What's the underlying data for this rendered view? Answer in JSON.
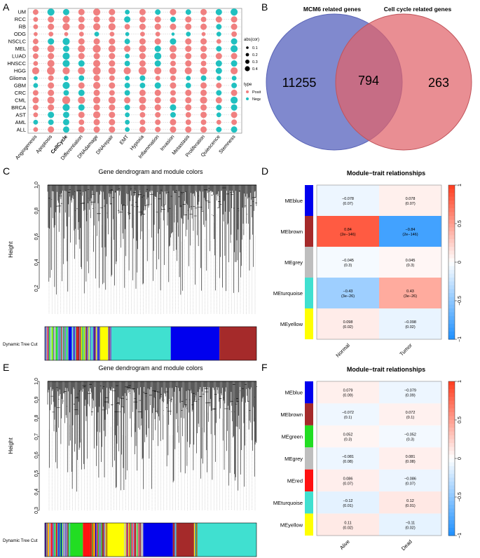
{
  "panel_labels": {
    "A": "A",
    "B": "B",
    "C": "C",
    "D": "D",
    "E": "E",
    "F": "F"
  },
  "colors": {
    "positive": "#f08080",
    "negative": "#20c0c0",
    "venn_left": "#6a74c6",
    "venn_right": "#e0636a",
    "blue": "#0000ee",
    "brown": "#a52a2a",
    "grey": "#bebebe",
    "turquoise": "#40e0d0",
    "yellow": "#ffff00",
    "green": "#22dd22",
    "red": "#ff1111"
  },
  "panelA": {
    "chart_data": {
      "type": "scatter",
      "rows": [
        "UM",
        "RCC",
        "RB",
        "ODG",
        "NSCLC",
        "MEL",
        "LUAD",
        "HNSCC",
        "HGG",
        "Glioma",
        "GBM",
        "CRC",
        "CML",
        "BRCA",
        "AST",
        "AML",
        "ALL"
      ],
      "columns": [
        "Angiogenesis",
        "Apoptosis",
        "CellCycle",
        "Differentiation",
        "DNAdamage",
        "DNArepair",
        "EMT",
        "Hypoxia",
        "Inflammation",
        "Invasion",
        "Metastasis",
        "Proliferation",
        "Quiescence",
        "Stemness"
      ],
      "highlight_column": "CellCycle",
      "size_legend": {
        "title": "abs(cor)",
        "labels": [
          "0.1",
          "0.2",
          "0.3",
          "0.4"
        ],
        "values": [
          0.1,
          0.2,
          0.3,
          0.4
        ]
      },
      "type_legend": {
        "title": "type",
        "labels": [
          "Positive",
          "Negative"
        ]
      },
      "signs": [
        "PNNPPPNPNPNPNN",
        "PPPPPPNPPNPPPP",
        "PPPPPPPPPPPPNP",
        "PPPPNPNPPNNPNP",
        "PNNPPPNPPNPPPN",
        "PPNPPPPPNPPPNN",
        "PPNPPPNPNPPPPP",
        "PPNNPPNPNPPPNN",
        "PPPPPPPPPPPPNP",
        "NPNNPPNNPPNNNN",
        "NPNPPPNNNPNPPN",
        "PPNNPPNPPPPPNP",
        "PPPPPPPPPPPPPN",
        "PPNNPPNPPNPPNN",
        "PNNPPPNPPNPPNP",
        "NNNPPPNPPPPPPP",
        "PPNPPPNPPPPPNN"
      ],
      "magnitudes": [
        [
          0.25,
          0.35,
          0.3,
          0.3,
          0.35,
          0.3,
          0.2,
          0.3,
          0.25,
          0.3,
          0.25,
          0.3,
          0.3,
          0.35
        ],
        [
          0.2,
          0.3,
          0.35,
          0.3,
          0.3,
          0.3,
          0.3,
          0.3,
          0.3,
          0.25,
          0.3,
          0.25,
          0.3,
          0.3
        ],
        [
          0.2,
          0.3,
          0.35,
          0.3,
          0.35,
          0.35,
          0.25,
          0.3,
          0.3,
          0.3,
          0.3,
          0.3,
          0.25,
          0.3
        ],
        [
          0.15,
          0.2,
          0.15,
          0.2,
          0.2,
          0.2,
          0.15,
          0.2,
          0.2,
          0.1,
          0.2,
          0.15,
          0.2,
          0.25
        ],
        [
          0.25,
          0.3,
          0.35,
          0.3,
          0.3,
          0.3,
          0.25,
          0.3,
          0.3,
          0.3,
          0.3,
          0.3,
          0.2,
          0.3
        ],
        [
          0.3,
          0.35,
          0.3,
          0.35,
          0.4,
          0.35,
          0.3,
          0.35,
          0.3,
          0.35,
          0.3,
          0.3,
          0.25,
          0.35
        ],
        [
          0.25,
          0.3,
          0.35,
          0.3,
          0.3,
          0.3,
          0.2,
          0.3,
          0.35,
          0.3,
          0.3,
          0.3,
          0.3,
          0.3
        ],
        [
          0.2,
          0.35,
          0.35,
          0.3,
          0.35,
          0.3,
          0.25,
          0.3,
          0.3,
          0.25,
          0.3,
          0.25,
          0.3,
          0.3
        ],
        [
          0.35,
          0.4,
          0.35,
          0.35,
          0.4,
          0.35,
          0.35,
          0.4,
          0.35,
          0.35,
          0.35,
          0.35,
          0.3,
          0.35
        ],
        [
          0.15,
          0.25,
          0.2,
          0.25,
          0.3,
          0.25,
          0.2,
          0.25,
          0.2,
          0.25,
          0.2,
          0.25,
          0.2,
          0.2
        ],
        [
          0.2,
          0.3,
          0.35,
          0.3,
          0.35,
          0.3,
          0.25,
          0.25,
          0.3,
          0.3,
          0.25,
          0.3,
          0.25,
          0.25
        ],
        [
          0.25,
          0.3,
          0.25,
          0.3,
          0.3,
          0.25,
          0.25,
          0.3,
          0.3,
          0.25,
          0.3,
          0.3,
          0.25,
          0.3
        ],
        [
          0.3,
          0.35,
          0.4,
          0.35,
          0.35,
          0.35,
          0.3,
          0.35,
          0.3,
          0.3,
          0.3,
          0.35,
          0.3,
          0.35
        ],
        [
          0.25,
          0.3,
          0.35,
          0.3,
          0.3,
          0.3,
          0.25,
          0.3,
          0.3,
          0.3,
          0.3,
          0.3,
          0.25,
          0.3
        ],
        [
          0.2,
          0.3,
          0.3,
          0.3,
          0.35,
          0.3,
          0.2,
          0.25,
          0.25,
          0.25,
          0.25,
          0.3,
          0.2,
          0.3
        ],
        [
          0.2,
          0.25,
          0.3,
          0.25,
          0.3,
          0.3,
          0.2,
          0.25,
          0.25,
          0.3,
          0.25,
          0.25,
          0.2,
          0.25
        ],
        [
          0.2,
          0.3,
          0.3,
          0.3,
          0.3,
          0.3,
          0.2,
          0.3,
          0.25,
          0.3,
          0.3,
          0.3,
          0.25,
          0.3
        ]
      ]
    }
  },
  "panelB": {
    "left_title": "MCM6 related genes",
    "right_title": "Cell cycle related genes",
    "left_only": "11255",
    "overlap": "794",
    "right_only": "263"
  },
  "panelC": {
    "title": "Gene dendrogram and module colors",
    "ylabel": "Height",
    "yticks": [
      "1.0",
      "0.8",
      "0.6",
      "0.4",
      "0.2"
    ],
    "ytick_values": [
      1.0,
      0.8,
      0.6,
      0.4,
      0.2
    ],
    "ylim": [
      0.0,
      1.0
    ],
    "colorbar_label": "Dynamic Tree Cut",
    "modules": [
      {
        "color": "mixed",
        "fraction": 0.26
      },
      {
        "color": "#ffff00",
        "fraction": 0.035
      },
      {
        "color": "mixed",
        "fraction": 0.02
      },
      {
        "color": "#40e0d0",
        "fraction": 0.28
      },
      {
        "color": "#0000ee",
        "fraction": 0.23
      },
      {
        "color": "#a52a2a",
        "fraction": 0.175
      }
    ]
  },
  "panelD": {
    "title": "Module−trait relationships",
    "columns": [
      "Normal",
      "Tumor"
    ],
    "rows": [
      {
        "name": "MEblue",
        "swatch": "#0000ee",
        "cells": [
          {
            "cor": "−0.078",
            "p": "(0.07)",
            "val": -0.078
          },
          {
            "cor": "0.078",
            "p": "(0.07)",
            "val": 0.078
          }
        ]
      },
      {
        "name": "MEbrown",
        "swatch": "#a52a2a",
        "cells": [
          {
            "cor": "0.84",
            "p": "(2e−146)",
            "val": 0.84
          },
          {
            "cor": "−0.84",
            "p": "(2e−146)",
            "val": -0.84
          }
        ]
      },
      {
        "name": "MEgrey",
        "swatch": "#bebebe",
        "cells": [
          {
            "cor": "−0.045",
            "p": "(0.3)",
            "val": -0.045
          },
          {
            "cor": "0.045",
            "p": "(0.3)",
            "val": 0.045
          }
        ]
      },
      {
        "name": "MEturquoise",
        "swatch": "#40e0d0",
        "cells": [
          {
            "cor": "−0.43",
            "p": "(3e−26)",
            "val": -0.43
          },
          {
            "cor": "0.43",
            "p": "(3e−26)",
            "val": 0.43
          }
        ]
      },
      {
        "name": "MEyellow",
        "swatch": "#ffff00",
        "cells": [
          {
            "cor": "0.098",
            "p": "(0.02)",
            "val": 0.098
          },
          {
            "cor": "−0.098",
            "p": "(0.02)",
            "val": -0.098
          }
        ]
      }
    ],
    "legend_ticks": [
      "1",
      "0.5",
      "0",
      "−0.5",
      "−1"
    ],
    "legend_values": [
      1,
      0.5,
      0,
      -0.5,
      -1
    ]
  },
  "panelE": {
    "title": "Gene dendrogram and module colors",
    "ylabel": "Height",
    "yticks": [
      "1.0",
      "0.9",
      "0.8",
      "0.7",
      "0.6",
      "0.5",
      "0.4",
      "0.3"
    ],
    "ytick_values": [
      1.0,
      0.9,
      0.8,
      0.7,
      0.6,
      0.5,
      0.4,
      0.3
    ],
    "ylim": [
      0.3,
      1.0
    ],
    "colorbar_label": "Dynamic Tree Cut",
    "modules": [
      {
        "color": "mixed",
        "fraction": 0.12
      },
      {
        "color": "#22dd22",
        "fraction": 0.06
      },
      {
        "color": "#ff1111",
        "fraction": 0.035
      },
      {
        "color": "mixed",
        "fraction": 0.08
      },
      {
        "color": "#ffff00",
        "fraction": 0.08
      },
      {
        "color": "mixed",
        "fraction": 0.09
      },
      {
        "color": "#0000ee",
        "fraction": 0.14
      },
      {
        "color": "mixed",
        "fraction": 0.02
      },
      {
        "color": "#a52a2a",
        "fraction": 0.08
      },
      {
        "color": "mixed",
        "fraction": 0.015
      },
      {
        "color": "#40e0d0",
        "fraction": 0.28
      }
    ]
  },
  "panelF": {
    "title": "Module−trait relationships",
    "columns": [
      "Alive",
      "Dead"
    ],
    "rows": [
      {
        "name": "MEblue",
        "swatch": "#0000ee",
        "cells": [
          {
            "cor": "0.079",
            "p": "(0.09)",
            "val": 0.079
          },
          {
            "cor": "−0.079",
            "p": "(0.09)",
            "val": -0.079
          }
        ]
      },
      {
        "name": "MEbrown",
        "swatch": "#a52a2a",
        "cells": [
          {
            "cor": "−0.072",
            "p": "(0.1)",
            "val": -0.072
          },
          {
            "cor": "0.072",
            "p": "(0.1)",
            "val": 0.072
          }
        ]
      },
      {
        "name": "MEgreen",
        "swatch": "#22dd22",
        "cells": [
          {
            "cor": "0.052",
            "p": "(0.3)",
            "val": 0.052
          },
          {
            "cor": "−0.052",
            "p": "(0.3)",
            "val": -0.052
          }
        ]
      },
      {
        "name": "MEgrey",
        "swatch": "#bebebe",
        "cells": [
          {
            "cor": "−0.081",
            "p": "(0.08)",
            "val": -0.081
          },
          {
            "cor": "0.081",
            "p": "(0.08)",
            "val": 0.081
          }
        ]
      },
      {
        "name": "MEred",
        "swatch": "#ff1111",
        "cells": [
          {
            "cor": "0.086",
            "p": "(0.07)",
            "val": 0.086
          },
          {
            "cor": "−0.086",
            "p": "(0.07)",
            "val": -0.086
          }
        ]
      },
      {
        "name": "MEturquoise",
        "swatch": "#40e0d0",
        "cells": [
          {
            "cor": "−0.12",
            "p": "(0.01)",
            "val": -0.12
          },
          {
            "cor": "0.12",
            "p": "(0.01)",
            "val": 0.12
          }
        ]
      },
      {
        "name": "MEyellow",
        "swatch": "#ffff00",
        "cells": [
          {
            "cor": "0.11",
            "p": "(0.02)",
            "val": 0.11
          },
          {
            "cor": "−0.11",
            "p": "(0.02)",
            "val": -0.11
          }
        ]
      }
    ],
    "legend_ticks": [
      "1",
      "0.5",
      "0",
      "−0.5",
      "−1"
    ],
    "legend_values": [
      1,
      0.5,
      0,
      -0.5,
      -1
    ]
  }
}
